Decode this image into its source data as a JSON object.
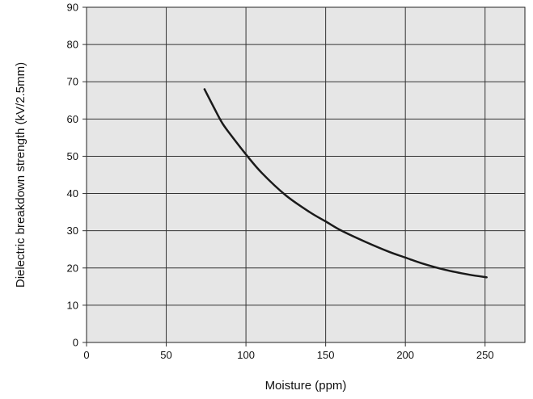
{
  "chart_data": {
    "type": "line",
    "title": "",
    "xlabel": "Moisture (ppm)",
    "ylabel": "Dielectric breakdown strength (kV/2.5mm)",
    "xlim": [
      0,
      275
    ],
    "ylim": [
      0,
      90
    ],
    "x_ticks": [
      0,
      50,
      100,
      150,
      200,
      250
    ],
    "y_ticks": [
      0,
      10,
      20,
      30,
      40,
      50,
      60,
      70,
      80,
      90
    ],
    "grid": true,
    "colors": {
      "plot_background": "#e6e6e6",
      "grid": "#333333",
      "line": "#1a1a1a"
    },
    "series": [
      {
        "x": [
          74,
          80,
          85,
          90,
          100,
          110,
          125,
          140,
          150,
          160,
          175,
          190,
          200,
          210,
          225,
          240,
          251
        ],
        "y": [
          68,
          63,
          59,
          56,
          50.5,
          45.5,
          39.5,
          35,
          32.5,
          30,
          27,
          24.3,
          22.8,
          21.3,
          19.5,
          18.2,
          17.5
        ]
      }
    ]
  }
}
